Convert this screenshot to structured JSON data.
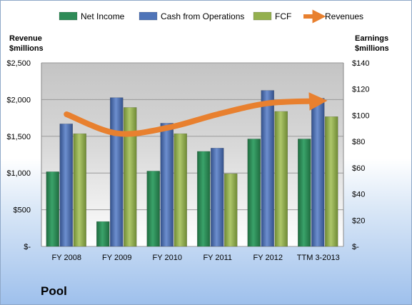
{
  "chart_data": {
    "type": "bar",
    "company": "Pool",
    "categories": [
      "FY 2008",
      "FY 2009",
      "FY 2010",
      "FY 2011",
      "FY 2012",
      "TTM 3-2013"
    ],
    "left_axis": {
      "title_line1": "Revenue",
      "title_line2": "$millions",
      "ylim": [
        0,
        2500
      ],
      "tick_labels": [
        "$-",
        "$500",
        "$1,000",
        "$1,500",
        "$2,000",
        "$2,500"
      ],
      "tick_values": [
        0,
        500,
        1000,
        1500,
        2000,
        2500
      ]
    },
    "right_axis": {
      "title_line1": "Earnings",
      "title_line2": "$millions",
      "ylim": [
        0,
        140
      ],
      "tick_labels": [
        "$-",
        "$20",
        "$40",
        "$60",
        "$80",
        "$100",
        "$120",
        "$140"
      ],
      "tick_values": [
        0,
        20,
        40,
        60,
        80,
        100,
        120,
        140
      ]
    },
    "series": [
      {
        "name": "Net Income",
        "type": "bar",
        "axis": "right",
        "color": "#2e8b57",
        "values": [
          57,
          19,
          57.5,
          72.5,
          82,
          82
        ]
      },
      {
        "name": "Cash from Operations",
        "type": "bar",
        "axis": "right",
        "color": "#4f74b8",
        "values": [
          93.5,
          113.5,
          94,
          75,
          119,
          113
        ]
      },
      {
        "name": "FCF",
        "type": "bar",
        "axis": "right",
        "color": "#94b04f",
        "values": [
          86,
          106,
          86,
          55.5,
          103,
          99
        ]
      },
      {
        "name": "Revenues",
        "type": "line",
        "axis": "left",
        "color": "#e8802f",
        "values": [
          1800,
          1540,
          1615,
          1800,
          1950,
          1980
        ]
      }
    ],
    "legend_position": "top",
    "grid": true
  }
}
